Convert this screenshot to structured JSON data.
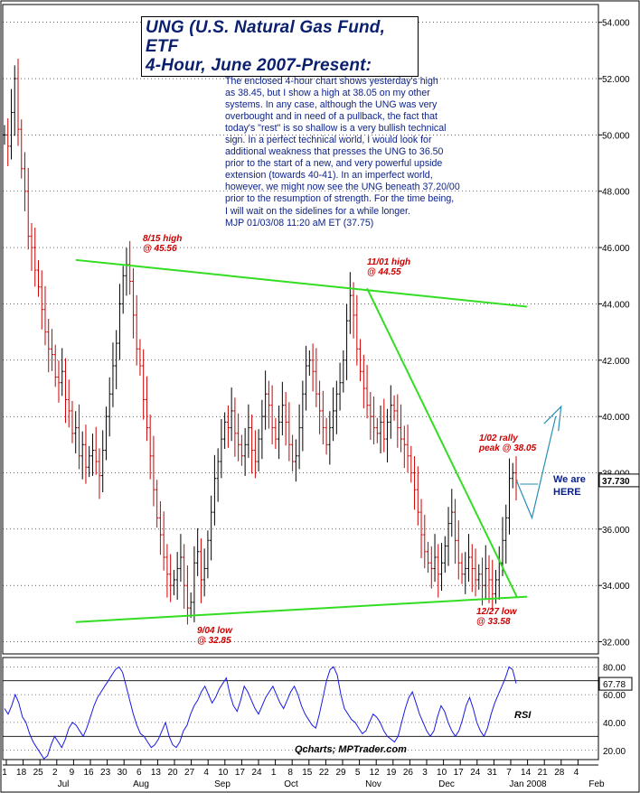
{
  "chart_data": {
    "type": "line",
    "title": "UNG (U.S. Natural Gas Fund, ETF",
    "subtitle": "4-Hour, June 2007-Present:",
    "commentary": [
      "The enclosed 4-hour chart shows yesterday's high",
      "as 38.45, but I show a high at 38.05 on my other",
      "systems. In any case, although the UNG was very",
      "overbought and in need of a pullback, the fact that",
      "today's \"rest\" is so shallow is a very bullish technical",
      "sign. In a perfect technical world, I would look for",
      "additional weakness that presses the UNG to 36.50",
      "prior to the start of a new, and very powerful upside",
      "extension (towards 40-41). In an imperfect world,",
      "however, we might now see the UNG beneath 37.20/00",
      "prior to the resumption of strength. For the time being,",
      "I will wait on the sidelines for a while longer."
    ],
    "signature": "MJP  01/03/08 11:20 aM ET  (37.75)",
    "price_axis": {
      "ylim": [
        31.6,
        54.6
      ],
      "ticks": [
        "54.000",
        "52.000",
        "50.000",
        "48.000",
        "46.000",
        "44.000",
        "42.000",
        "40.000",
        "38.000",
        "36.000",
        "34.000",
        "32.000"
      ],
      "tick_values": [
        54,
        52,
        50,
        48,
        46,
        44,
        42,
        40,
        38,
        36,
        34,
        32
      ],
      "last_price_label": "37.730",
      "last_price": 37.73
    },
    "x_axis": {
      "day_labels": [
        "1",
        "18",
        "25",
        "2",
        "9",
        "16",
        "23",
        "30",
        "6",
        "13",
        "20",
        "27",
        "4",
        "10",
        "17",
        "24",
        "1",
        "8",
        "15",
        "22",
        "29",
        "5",
        "12",
        "19",
        "26",
        "3",
        "10",
        "17",
        "24",
        "31",
        "7",
        "14",
        "21",
        "28",
        "4"
      ],
      "month_labels": [
        "Jul",
        "Aug",
        "Sep",
        "Oct",
        "Nov",
        "Dec",
        "Jan 2008",
        "Feb"
      ]
    },
    "series": [
      {
        "values": [
          50.0,
          49.6,
          50.8,
          52.0,
          50.2,
          48.8,
          48.0,
          46.4,
          46.0,
          45.2,
          44.6,
          43.8,
          43.0,
          42.4,
          42.2,
          41.4,
          41.2,
          41.6,
          40.6,
          40.2,
          39.4,
          39.6,
          38.6,
          39.0,
          38.2,
          38.6,
          38.8,
          38.4,
          37.9,
          38.8,
          40.0,
          40.8,
          41.8,
          42.6,
          44.0,
          45.0,
          45.4,
          44.8,
          43.6,
          42.4,
          41.8,
          40.6,
          39.6,
          38.6,
          37.4,
          36.4,
          35.8,
          35.0,
          34.4,
          34.0,
          34.2,
          34.6,
          35.0,
          34.0,
          33.2,
          33.4,
          34.8,
          35.2,
          34.2,
          34.6,
          35.6,
          36.6,
          37.8,
          38.4,
          39.2,
          39.8,
          39.6,
          40.2,
          39.4,
          39.0,
          38.6,
          39.0,
          39.6,
          38.8,
          38.4,
          39.2,
          40.0,
          40.8,
          40.4,
          39.6,
          39.2,
          39.8,
          40.4,
          39.8,
          39.0,
          38.4,
          38.6,
          39.6,
          40.8,
          41.8,
          42.0,
          41.6,
          40.8,
          40.2,
          39.6,
          39.0,
          39.6,
          40.2,
          40.8,
          41.2,
          42.0,
          43.4,
          44.3,
          43.6,
          42.4,
          41.6,
          41.0,
          40.4,
          40.0,
          39.6,
          39.4,
          39.8,
          39.2,
          39.8,
          40.4,
          40.2,
          39.6,
          39.2,
          39.0,
          38.6,
          38.0,
          37.4,
          36.6,
          35.8,
          35.2,
          34.8,
          34.6,
          35.0,
          34.4,
          34.8,
          35.4,
          36.2,
          36.6,
          35.6,
          34.8,
          34.4,
          34.6,
          35.0,
          34.6,
          34.2,
          34.4,
          34.0,
          34.6,
          34.2,
          33.7,
          34.2,
          34.8,
          35.6,
          36.4,
          37.8,
          38.0,
          37.73
        ]
      },
      {
        "name": "RSI",
        "ylim": [
          14,
          86
        ],
        "ticks": [
          "80.00",
          "67.78",
          "60.00",
          "40.00",
          "20.00"
        ],
        "tick_values": [
          80,
          60,
          40,
          20
        ],
        "last_value": 67.78,
        "levels": [
          70,
          30
        ],
        "values": [
          50,
          46,
          52,
          60,
          54,
          44,
          40,
          32,
          26,
          22,
          18,
          14,
          16,
          24,
          30,
          26,
          22,
          28,
          36,
          40,
          38,
          34,
          30,
          36,
          44,
          52,
          58,
          62,
          66,
          70,
          74,
          78,
          80,
          76,
          66,
          56,
          46,
          38,
          32,
          30,
          26,
          22,
          24,
          28,
          34,
          40,
          30,
          24,
          22,
          26,
          34,
          38,
          46,
          52,
          56,
          62,
          66,
          60,
          54,
          58,
          64,
          68,
          72,
          60,
          52,
          48,
          56,
          66,
          62,
          56,
          50,
          46,
          52,
          58,
          62,
          66,
          60,
          54,
          50,
          56,
          62,
          66,
          60,
          52,
          46,
          42,
          38,
          36,
          46,
          58,
          70,
          78,
          80,
          74,
          60,
          50,
          46,
          42,
          40,
          36,
          32,
          34,
          40,
          46,
          44,
          40,
          34,
          30,
          28,
          26,
          30,
          40,
          50,
          58,
          62,
          54,
          46,
          40,
          34,
          30,
          34,
          44,
          52,
          48,
          40,
          34,
          30,
          34,
          42,
          52,
          58,
          50,
          40,
          34,
          30,
          36,
          46,
          54,
          60,
          66,
          72,
          80,
          78,
          68
        ]
      }
    ],
    "trendlines": [
      {
        "from": [
          21,
          45.56
        ],
        "to": [
          150,
          43.9
        ]
      },
      {
        "from": [
          21,
          32.7
        ],
        "to": [
          150,
          33.6
        ]
      },
      {
        "from": [
          107,
          44.55
        ],
        "to": [
          147,
          33.58
        ]
      }
    ],
    "annotations": [
      {
        "line1": "8/15 high",
        "line2": "@ 45.56",
        "x": 21,
        "y": 45.56
      },
      {
        "line1": "11/01 high",
        "line2": "@ 44.55",
        "x": 107,
        "y": 44.55
      },
      {
        "line1": "9/04 low",
        "line2": "@ 32.85",
        "x": 61,
        "y": 32.85
      },
      {
        "line1": "12/27 low",
        "line2": "@ 33.58",
        "x": 147,
        "y": 33.58
      },
      {
        "line1": "1/02 rally",
        "line2": "peak @ 38.05",
        "x": 150,
        "y": 38.05
      }
    ],
    "here_note": {
      "line1": "We are",
      "line2": "HERE"
    },
    "projection": [
      [
        150,
        37.73
      ],
      [
        153,
        36.4
      ],
      [
        160,
        40.0
      ]
    ],
    "credit": "Qcharts; MPTrader.com",
    "colors": {
      "up_bar": "#000000",
      "down_bar": "#cc0000",
      "trendline": "#33dd22",
      "projection": "#2a8fb5",
      "rsi": "#1a1ae6",
      "title": "#0a1f6e",
      "annotation": "#cc0000"
    }
  }
}
